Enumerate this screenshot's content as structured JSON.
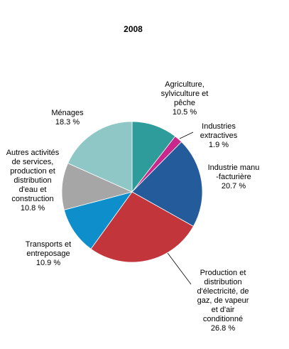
{
  "chart_data": {
    "type": "pie",
    "title": "2008",
    "start_angle_deg": 0,
    "direction": "clockwise",
    "slices": [
      {
        "id": "agri",
        "label_lines": [
          "Agriculture,",
          "sylviculture et",
          "pêche",
          "10.5 %"
        ],
        "value": 10.5,
        "color": "#2e9c9a"
      },
      {
        "id": "extr",
        "label_lines": [
          "Industries",
          "extractives",
          "1.9 %"
        ],
        "value": 1.9,
        "color": "#c8288c"
      },
      {
        "id": "manu",
        "label_lines": [
          "Industrie manu",
          "-facturière",
          "20.7 %"
        ],
        "value": 20.7,
        "color": "#245c9b"
      },
      {
        "id": "prod",
        "label_lines": [
          "Production et",
          "distribution",
          "d'électricité, de",
          "gaz, de vapeur",
          "et d'air",
          "conditionné",
          "26.8 %"
        ],
        "value": 26.8,
        "color": "#c2353b"
      },
      {
        "id": "trans",
        "label_lines": [
          "Transports et",
          "entreposage",
          "10.9 %"
        ],
        "value": 10.9,
        "color": "#0e8fcc"
      },
      {
        "id": "autres",
        "label_lines": [
          "Autres activités",
          "de services,",
          "production et",
          "distribution",
          "d'eau et",
          "construction",
          "10.8 %"
        ],
        "value": 10.8,
        "color": "#a6a6a6"
      },
      {
        "id": "menages",
        "label_lines": [
          "Ménages",
          "18.3 %"
        ],
        "value": 18.3,
        "color": "#8fc6c6"
      }
    ]
  }
}
